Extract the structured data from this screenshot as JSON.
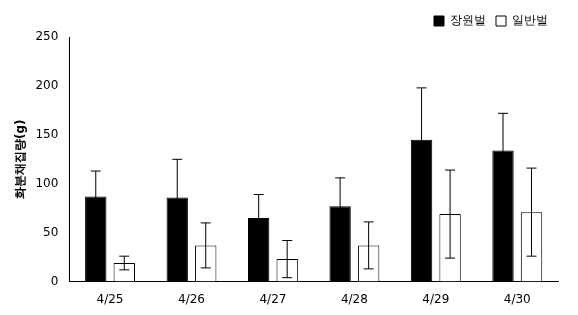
{
  "chart_data": {
    "type": "bar",
    "y_label": "화분채집량(g)",
    "categories": [
      "4/25",
      "4/26",
      "4/27",
      "4/28",
      "4/29",
      "4/30"
    ],
    "series": [
      {
        "name": "장원벌",
        "color": "#000000",
        "values": [
          87,
          86,
          65,
          77,
          145,
          134
        ],
        "errors": [
          26,
          39,
          24,
          29,
          53,
          38
        ]
      },
      {
        "name": "일반벌",
        "color": "#ffffff",
        "values": [
          19,
          37,
          23,
          37,
          69,
          71
        ],
        "errors": [
          7,
          23,
          19,
          24,
          45,
          45
        ]
      }
    ],
    "ylim": [
      0,
      250
    ],
    "yticks": [
      0,
      50,
      100,
      150,
      200,
      250
    ],
    "grid": false,
    "legend": "top-right"
  }
}
